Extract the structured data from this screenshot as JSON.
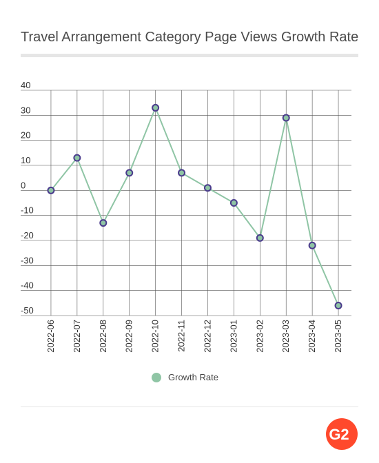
{
  "chart_data": {
    "type": "line",
    "title": "Travel Arrangement Category Page Views Growth Rate",
    "categories": [
      "2022-06",
      "2022-07",
      "2022-08",
      "2022-09",
      "2022-10",
      "2022-11",
      "2022-12",
      "2023-01",
      "2023-02",
      "2023-03",
      "2023-04",
      "2023-05"
    ],
    "series": [
      {
        "name": "Growth Rate",
        "values": [
          0,
          13,
          -13,
          7,
          33,
          7,
          1,
          -5,
          -19,
          29,
          -22,
          -46
        ]
      }
    ],
    "ylim": [
      -50,
      40
    ],
    "yticks": [
      40,
      30,
      20,
      10,
      0,
      -10,
      -20,
      -30,
      -40,
      -50
    ],
    "xlabel": "",
    "ylabel": "",
    "grid": true,
    "legend_position": "bottom",
    "colors": {
      "line": "#8fc5a5",
      "marker_fill": "#8fc5a5",
      "marker_edge": "#4a3b8c",
      "grid": "#555555"
    }
  },
  "logo": {
    "icon": "g2-logo-icon",
    "text": "G2",
    "color": "#ff492c"
  }
}
